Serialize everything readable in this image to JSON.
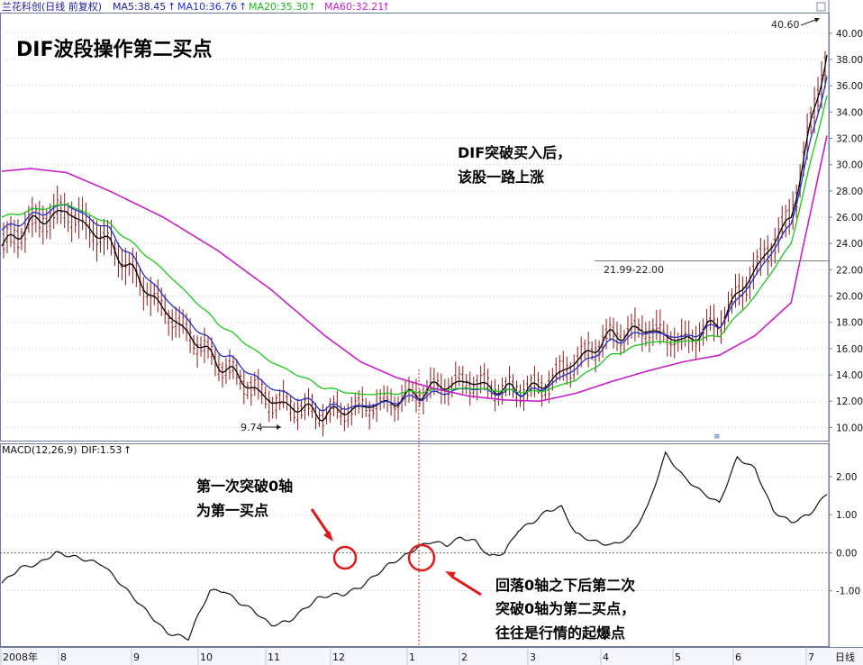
{
  "header": {
    "stock": "兰花科创(日线 前复权)",
    "ma5": "MA5:38.45",
    "ma10": "MA10:36.76",
    "ma20": "MA20:35.30",
    "ma60": "MA60:32.21",
    "arrow": "↑"
  },
  "colors": {
    "ma5": "#000000",
    "ma10": "#1f2fd0",
    "ma20": "#18c818",
    "ma60": "#c81ec8",
    "candle": "#8b1a1a",
    "ma_label_text": "#1a1aa0",
    "signal_line": "#e02020",
    "grid": "#9aa8c8"
  },
  "annotations": {
    "title": "DIF波段操作第二买点",
    "dif_note_line1": "DIF突破买入后，",
    "dif_note_line2": "该股一路上涨",
    "low_label": "9.74",
    "high_label": "40.60",
    "range_label": "21.99-22.00",
    "first_cross_line1": "第一次突破0轴",
    "first_cross_line2": "为第一买点",
    "second_cross_line1": "回落0轴之下后第二次",
    "second_cross_line2": "突破0轴为第二买点，",
    "second_cross_line3": "往往是行情的起爆点"
  },
  "macd_header": {
    "label": "MACD(12,26,9)",
    "dif": "DIF:1.53",
    "arrow": "↑"
  },
  "x_axis": {
    "labels": [
      "2008年",
      "8",
      "9",
      "10",
      "11",
      "12",
      "1",
      "2",
      "3",
      "4",
      "5",
      "6",
      "7"
    ],
    "right_label": "日线"
  },
  "chart_data": [
    {
      "type": "line",
      "title": "兰花科创(日线 前复权)",
      "y_ticks": [
        10,
        12,
        14,
        16,
        18,
        20,
        22,
        24,
        26,
        28,
        30,
        32,
        34,
        36,
        38,
        40
      ],
      "y_tick_labels": [
        "10.00",
        "12.00",
        "14.00",
        "16.00",
        "18.00",
        "20.00",
        "22.00",
        "24.00",
        "26.00",
        "28.00",
        "30.00",
        "32.00",
        "34.00",
        "36.00",
        "38.00",
        "40.00"
      ],
      "ylim": [
        9,
        41.5
      ],
      "xlim": [
        0,
        230
      ],
      "grid": true,
      "series": [
        {
          "name": "MA5",
          "x": [
            0,
            8,
            18,
            30,
            45,
            60,
            75,
            90,
            100,
            110,
            120,
            130,
            140,
            150,
            160,
            170,
            180,
            190,
            200,
            210,
            220,
            230
          ],
          "values": [
            23.8,
            25.5,
            26.5,
            24,
            19,
            15,
            12,
            11,
            11.5,
            12,
            13,
            13.5,
            12.8,
            13,
            15,
            17,
            17.5,
            16.5,
            18,
            22,
            26,
            38.5
          ]
        },
        {
          "name": "MA10",
          "x": [
            0,
            8,
            18,
            30,
            45,
            60,
            75,
            90,
            100,
            110,
            120,
            130,
            140,
            150,
            160,
            170,
            180,
            190,
            200,
            210,
            220,
            230
          ],
          "values": [
            25,
            26,
            27,
            25,
            20,
            16,
            13,
            11.5,
            11.6,
            12,
            12.5,
            13,
            12.6,
            12.8,
            14.5,
            16.5,
            17.3,
            16.8,
            17.8,
            21.5,
            25.5,
            36.8
          ]
        },
        {
          "name": "MA20",
          "x": [
            0,
            8,
            18,
            30,
            45,
            60,
            75,
            90,
            100,
            110,
            120,
            130,
            140,
            150,
            160,
            170,
            180,
            190,
            200,
            210,
            220,
            230
          ],
          "values": [
            26,
            26.5,
            27,
            25.5,
            22,
            18,
            15,
            13,
            12.5,
            12.6,
            12.8,
            13,
            12.8,
            12.7,
            13.6,
            15.5,
            16.5,
            16.5,
            17,
            20,
            24,
            35.3
          ]
        },
        {
          "name": "MA60",
          "x": [
            0,
            8,
            18,
            30,
            45,
            60,
            75,
            90,
            100,
            110,
            120,
            130,
            140,
            150,
            160,
            170,
            180,
            190,
            200,
            210,
            220,
            230
          ],
          "values": [
            29.5,
            29.7,
            29.4,
            28,
            26,
            23.5,
            20.5,
            17,
            15,
            13.8,
            13,
            12.4,
            12.1,
            12,
            12.6,
            13.5,
            14.3,
            15,
            15.5,
            17,
            19.5,
            32.2
          ]
        }
      ],
      "candles_note": "OHLC bars drawn as a synthesized series following MA5",
      "markers": [
        {
          "label": "9.74",
          "x": 83,
          "value": 9.74
        },
        {
          "label": "40.60",
          "x": 229,
          "value": 40.6
        },
        {
          "label": "21.99-22.00",
          "value": 22.0
        }
      ]
    },
    {
      "type": "line",
      "title": "MACD(12,26,9)",
      "y_ticks": [
        -1,
        0,
        1,
        2
      ],
      "y_tick_labels": [
        "-1.00",
        "0.00",
        "1.00",
        "2.00"
      ],
      "ylim": [
        -2.45,
        2.85
      ],
      "xlim": [
        0,
        230
      ],
      "grid": true,
      "series": [
        {
          "name": "DIF",
          "x": [
            0,
            5,
            10,
            15,
            20,
            28,
            35,
            40,
            46,
            52,
            54,
            58,
            62,
            66,
            70,
            75,
            80,
            84,
            88,
            92,
            95,
            100,
            104,
            108,
            112,
            116,
            120,
            124,
            128,
            132,
            136,
            140,
            144,
            148,
            152,
            156,
            160,
            165,
            170,
            175,
            180,
            185,
            190,
            195,
            200,
            205,
            210,
            215,
            220,
            225,
            230
          ],
          "values": [
            -0.8,
            -0.4,
            -0.3,
            0,
            -0.1,
            -0.3,
            -1,
            -1.5,
            -2.1,
            -2.25,
            -1.8,
            -1,
            -1,
            -1.3,
            -1.5,
            -1.9,
            -1.8,
            -1.5,
            -1.2,
            -1.1,
            -1.1,
            -0.9,
            -0.6,
            -0.3,
            -0.1,
            0.15,
            0.3,
            0.2,
            0.4,
            0.3,
            -0.1,
            0,
            0.6,
            0.8,
            1.1,
            1.2,
            0.5,
            0.3,
            0.2,
            0.4,
            1.2,
            2.6,
            2,
            1.6,
            1.3,
            2.5,
            2.2,
            1.1,
            0.8,
            1,
            1.55
          ]
        }
      ]
    }
  ]
}
